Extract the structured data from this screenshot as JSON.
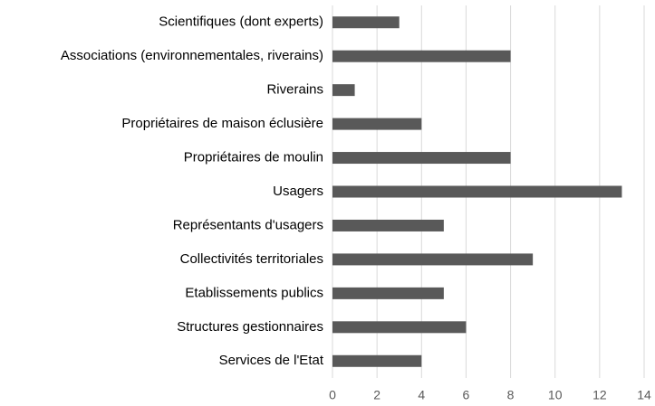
{
  "chart_data": {
    "type": "bar",
    "orientation": "horizontal",
    "categories": [
      "Scientifiques (dont experts)",
      "Associations (environnementales, riverains)",
      "Riverains",
      "Propriétaires de maison éclusière",
      "Propriétaires de moulin",
      "Usagers",
      "Représentants d'usagers",
      "Collectivités territoriales",
      "Etablissements publics",
      "Structures gestionnaires",
      "Services de l'Etat"
    ],
    "values": [
      3,
      8,
      1,
      4,
      8,
      13,
      5,
      9,
      5,
      6,
      4
    ],
    "color": "#595959",
    "xlim": [
      0,
      14
    ],
    "xticks": [
      0,
      2,
      4,
      6,
      8,
      10,
      12,
      14
    ],
    "grid": true
  }
}
